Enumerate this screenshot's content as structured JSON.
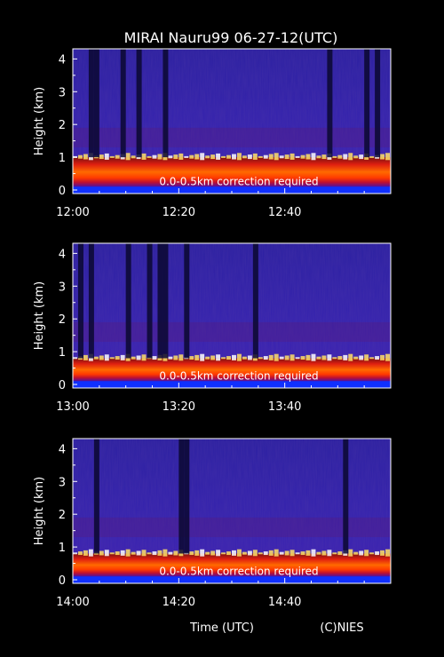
{
  "title": "MIRAI Nauru99 06-27-12(UTC)",
  "xlabel": "Time (UTC)",
  "credit": "(C)NIES",
  "chart_data": [
    {
      "type": "heatmap",
      "ylabel": "Height (km)",
      "yticks": [
        "0",
        "1",
        "2",
        "3",
        "4"
      ],
      "ylim": [
        0,
        4.2
      ],
      "xticks": [
        "12:00",
        "12:20",
        "12:40"
      ],
      "annotation": "0.0-0.5km correction required",
      "boundary_layer_top_km": 1.0,
      "dark_columns_minutes": [
        3,
        4,
        9,
        12,
        17,
        48,
        55,
        57
      ]
    },
    {
      "type": "heatmap",
      "ylabel": "Height (km)",
      "yticks": [
        "0",
        "1",
        "2",
        "3",
        "4"
      ],
      "ylim": [
        0,
        4.2
      ],
      "xticks": [
        "13:00",
        "13:20",
        "13:40"
      ],
      "annotation": "0.0-0.5km correction required",
      "boundary_layer_top_km": 0.8,
      "dark_columns_minutes": [
        1,
        3,
        10,
        14,
        16,
        17,
        21,
        34
      ]
    },
    {
      "type": "heatmap",
      "ylabel": "Height (km)",
      "yticks": [
        "0",
        "1",
        "2",
        "3",
        "4"
      ],
      "ylim": [
        0,
        4.2
      ],
      "xticks": [
        "14:00",
        "14:20",
        "14:40"
      ],
      "annotation": "0.0-0.5km correction required",
      "boundary_layer_top_km": 0.8,
      "dark_columns_minutes": [
        4,
        20,
        21,
        51
      ]
    }
  ]
}
